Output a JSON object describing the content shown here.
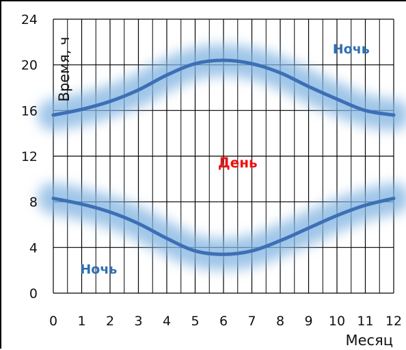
{
  "chart_data": {
    "type": "line",
    "title": "",
    "xlabel": "Месяц",
    "ylabel": "Время, ч",
    "xlim": [
      0,
      12
    ],
    "ylim": [
      0,
      24
    ],
    "x_ticks": [
      0,
      1,
      2,
      3,
      4,
      5,
      6,
      7,
      8,
      9,
      10,
      11,
      12
    ],
    "y_ticks": [
      0,
      4,
      8,
      12,
      16,
      20,
      24
    ],
    "grid": true,
    "series": [
      {
        "x": [
          0,
          1,
          2,
          3,
          4,
          5,
          6,
          7,
          8,
          9,
          10,
          11,
          12
        ],
        "values": [
          15.6,
          16.1,
          16.8,
          17.8,
          19.1,
          20.1,
          20.4,
          20.1,
          19.3,
          18.1,
          17.0,
          16.0,
          15.6
        ]
      },
      {
        "x": [
          0,
          1,
          2,
          3,
          4,
          5,
          6,
          7,
          8,
          9,
          10,
          11,
          12
        ],
        "values": [
          8.3,
          7.8,
          7.1,
          6.1,
          4.8,
          3.7,
          3.4,
          3.7,
          4.6,
          5.7,
          6.8,
          7.7,
          8.3
        ]
      }
    ],
    "annotations": [
      {
        "text": "Ночь",
        "x": 10.5,
        "y": 21,
        "color": "#2f6fb6"
      },
      {
        "text": "День",
        "x": 6.5,
        "y": 11,
        "color": "#ee1111"
      },
      {
        "text": "Ночь",
        "x": 1.6,
        "y": 1.7,
        "color": "#2f6fb6"
      }
    ],
    "line_color": "#3d6fb5",
    "glow_color": "#7fb2e0"
  }
}
